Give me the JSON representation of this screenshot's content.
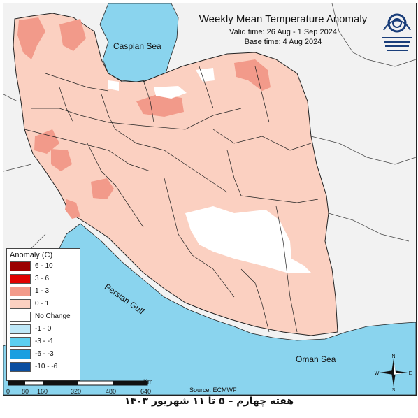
{
  "title": "Weekly Mean Temperature Anomaly",
  "valid_time": "Valid time: 26 Aug - 1 Sep 2024",
  "base_time": "Base time: 4 Aug 2024",
  "labels": {
    "caspian_sea": "Caspian Sea",
    "persian_gulf": "Persian Gulf",
    "oman_sea": "Oman Sea"
  },
  "legend": {
    "title": "Anomaly (C)",
    "items": [
      {
        "label": "6 - 10",
        "color": "#9b0000"
      },
      {
        "label": "3 - 6",
        "color": "#e00000"
      },
      {
        "label": "1 - 3",
        "color": "#f29a8a"
      },
      {
        "label": "0 - 1",
        "color": "#fbd0c1"
      },
      {
        "label": "No Change",
        "color": "#ffffff"
      },
      {
        "label": "-1 - 0",
        "color": "#bfe8f8"
      },
      {
        "label": "-3 - -1",
        "color": "#5ccff0"
      },
      {
        "label": "-6 - -3",
        "color": "#1b9fe0"
      },
      {
        "label": "-10 - -6",
        "color": "#0a4ea0"
      }
    ]
  },
  "scale_bar": {
    "ticks": [
      "0",
      "80",
      "160",
      "320",
      "480",
      "640"
    ],
    "unit": "Km"
  },
  "source": "Source: ECMWF",
  "caption": "هفته چهارم – ۵ تا ۱۱ شهریور ۱۴۰۳",
  "compass": {
    "n": "N",
    "s": "S",
    "e": "E",
    "w": "W"
  },
  "colors": {
    "sea": "#8ad4ee",
    "land_outside": "#f2f2f2",
    "anomaly_low": "#fbd0c1",
    "anomaly_mid": "#f29a8a",
    "no_change": "#ffffff"
  }
}
